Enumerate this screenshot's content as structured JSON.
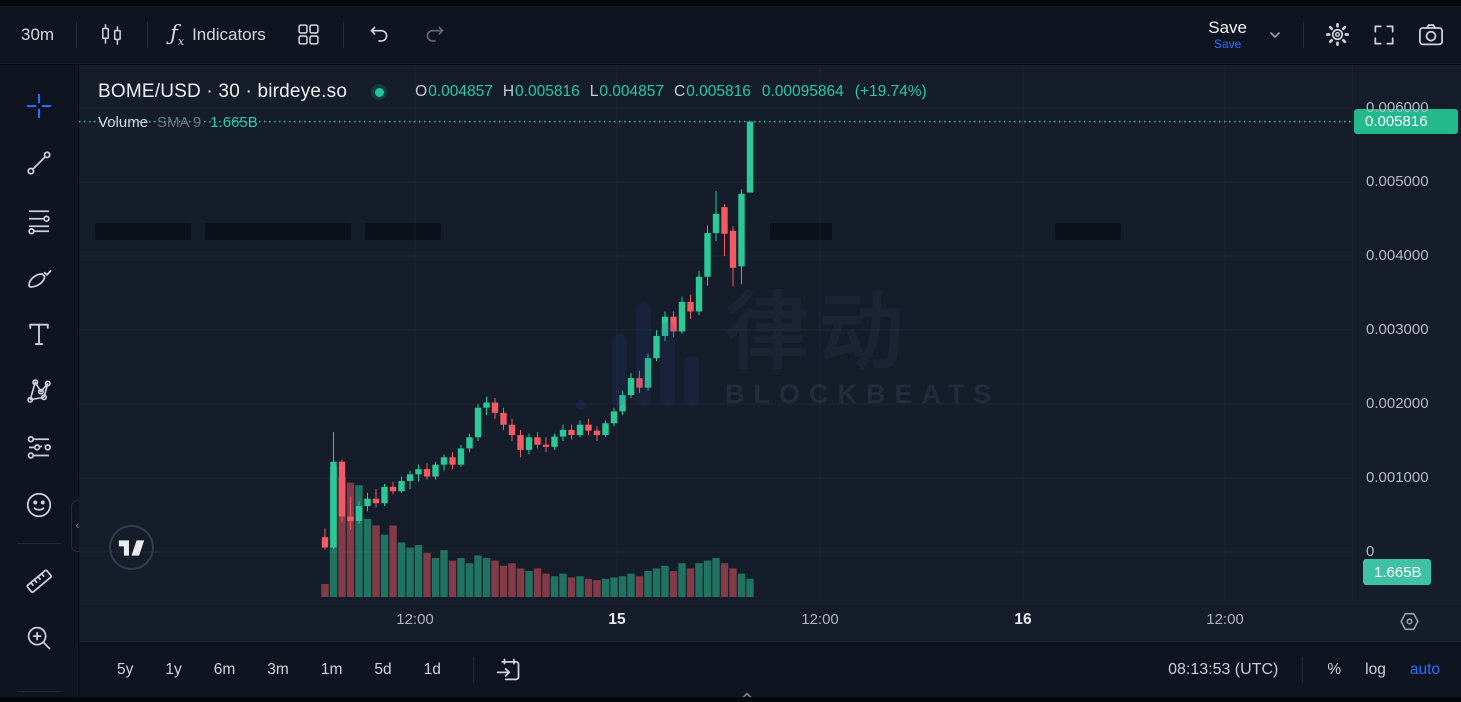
{
  "toolbar": {
    "interval": "30m",
    "indicators_label": "Indicators",
    "save_label": "Save",
    "save_tooltip": "Save"
  },
  "sidebar": {
    "tools": [
      "crosshair",
      "trend-line",
      "fib-retracement",
      "brush",
      "text",
      "xabcd-pattern",
      "forecast",
      "emoji",
      "measure",
      "zoom-in"
    ]
  },
  "symbol_header": {
    "title": "BOME/USD · 30 · birdeye.so",
    "ohlc": {
      "o_label": "O",
      "o": "0.004857",
      "h_label": "H",
      "h": "0.005816",
      "l_label": "L",
      "l": "0.004857",
      "c_label": "C",
      "c": "0.005816",
      "change_abs": "0.00095864",
      "change_pct": "(+19.74%)"
    }
  },
  "volume_row": {
    "label": "Volume",
    "sma_label": "SMA 9",
    "value": "1.665B"
  },
  "watermark": {
    "cjk": "律动",
    "brand": "BLOCKBEATS"
  },
  "price_axis": {
    "price_badge": "0.005816",
    "volume_badge": "1.665B"
  },
  "bottom_bar": {
    "ranges": [
      "5y",
      "1y",
      "6m",
      "3m",
      "1m",
      "5d",
      "1d"
    ],
    "clock": "08:13:53 (UTC)",
    "percent_label": "%",
    "log_label": "log",
    "auto_label": "auto"
  },
  "colors": {
    "up": "#2bc996",
    "down": "#f25a64",
    "accent_blue": "#2e6bff",
    "price_badge_bg": "#23b98b",
    "volume_badge_bg": "#3fc1a4",
    "teal_text": "#2dc9ab",
    "grid": "rgba(255,255,255,0.05)"
  },
  "chart_data": {
    "type": "candlestick",
    "symbol": "BOME/USD",
    "interval": "30",
    "source": "birdeye.so",
    "title": "BOME/USD · 30 · birdeye.so",
    "legend": [
      "Volume SMA 9 1.665B"
    ],
    "grid": true,
    "ylim": [
      0,
      0.0065
    ],
    "current_price": 0.005816,
    "price_line": 0.005816,
    "volume_sma": "1.665B",
    "y_ticks": [
      {
        "label": "0.006000",
        "value": 0.006
      },
      {
        "label": "0.005000",
        "value": 0.005
      },
      {
        "label": "0.004000",
        "value": 0.004
      },
      {
        "label": "0.003000",
        "value": 0.003
      },
      {
        "label": "0.002000",
        "value": 0.002
      },
      {
        "label": "0.001000",
        "value": 0.001
      },
      {
        "label": "0",
        "value": 0
      }
    ],
    "x_ticks": [
      {
        "label": "12:00",
        "x": 415,
        "major": false
      },
      {
        "label": "15",
        "x": 617,
        "major": true
      },
      {
        "label": "12:00",
        "x": 820,
        "major": false
      },
      {
        "label": "16",
        "x": 1023,
        "major": true
      },
      {
        "label": "12:00",
        "x": 1225,
        "major": false
      }
    ],
    "candles": [
      [
        0.0002,
        0.00032,
        3e-05,
        6e-05
      ],
      [
        6e-05,
        0.00162,
        4e-05,
        0.00122
      ],
      [
        0.00122,
        0.00125,
        0.0004,
        0.00048
      ],
      [
        0.00048,
        0.00075,
        0.0003,
        0.00042
      ],
      [
        0.00042,
        0.00068,
        0.00038,
        0.00062
      ],
      [
        0.00062,
        0.0008,
        0.00055,
        0.00072
      ],
      [
        0.00072,
        0.00085,
        0.0006,
        0.00066
      ],
      [
        0.00066,
        0.00092,
        0.00062,
        0.00088
      ],
      [
        0.00088,
        0.00095,
        0.00078,
        0.00082
      ],
      [
        0.00082,
        0.00102,
        0.0008,
        0.00096
      ],
      [
        0.00096,
        0.0011,
        0.00085,
        0.00105
      ],
      [
        0.00105,
        0.00118,
        0.00095,
        0.00112
      ],
      [
        0.00112,
        0.0012,
        0.00098,
        0.00102
      ],
      [
        0.00102,
        0.00122,
        0.00098,
        0.00118
      ],
      [
        0.00118,
        0.00132,
        0.0011,
        0.00128
      ],
      [
        0.00128,
        0.00135,
        0.00112,
        0.00118
      ],
      [
        0.00118,
        0.00145,
        0.00115,
        0.0014
      ],
      [
        0.0014,
        0.0016,
        0.00135,
        0.00155
      ],
      [
        0.00155,
        0.002,
        0.0015,
        0.00195
      ],
      [
        0.00195,
        0.0021,
        0.00185,
        0.00202
      ],
      [
        0.00202,
        0.00208,
        0.0018,
        0.00188
      ],
      [
        0.00188,
        0.00195,
        0.00165,
        0.00172
      ],
      [
        0.00172,
        0.0018,
        0.0015,
        0.00158
      ],
      [
        0.00158,
        0.00165,
        0.00128,
        0.00138
      ],
      [
        0.00138,
        0.0016,
        0.00132,
        0.00155
      ],
      [
        0.00155,
        0.00162,
        0.0014,
        0.00145
      ],
      [
        0.00145,
        0.00155,
        0.00135,
        0.00142
      ],
      [
        0.00142,
        0.0016,
        0.00138,
        0.00156
      ],
      [
        0.00156,
        0.00172,
        0.0015,
        0.00165
      ],
      [
        0.00165,
        0.00172,
        0.00152,
        0.00158
      ],
      [
        0.00158,
        0.00178,
        0.00155,
        0.00172
      ],
      [
        0.00172,
        0.0018,
        0.00158,
        0.00164
      ],
      [
        0.00164,
        0.0017,
        0.0015,
        0.00158
      ],
      [
        0.00158,
        0.00178,
        0.00155,
        0.00174
      ],
      [
        0.00174,
        0.00195,
        0.0017,
        0.0019
      ],
      [
        0.0019,
        0.00218,
        0.00185,
        0.00212
      ],
      [
        0.00212,
        0.00242,
        0.00208,
        0.00235
      ],
      [
        0.00235,
        0.00245,
        0.00215,
        0.00222
      ],
      [
        0.00222,
        0.00268,
        0.00218,
        0.00262
      ],
      [
        0.00262,
        0.003,
        0.00258,
        0.00292
      ],
      [
        0.00292,
        0.00325,
        0.00285,
        0.00318
      ],
      [
        0.00318,
        0.00325,
        0.0029,
        0.00298
      ],
      [
        0.00298,
        0.00345,
        0.00295,
        0.00338
      ],
      [
        0.00338,
        0.00348,
        0.00315,
        0.00325
      ],
      [
        0.00325,
        0.0038,
        0.0032,
        0.00372
      ],
      [
        0.00372,
        0.00441,
        0.0036,
        0.00431
      ],
      [
        0.00431,
        0.00488,
        0.0042,
        0.00457
      ],
      [
        0.00466,
        0.0047,
        0.004,
        0.0043
      ],
      [
        0.00434,
        0.0044,
        0.00359,
        0.00384
      ],
      [
        0.00386,
        0.0049,
        0.00362,
        0.00484
      ],
      [
        0.004857,
        0.005816,
        0.004857,
        0.005816
      ]
    ],
    "volume_rel": [
      0.1,
      1.0,
      0.92,
      0.88,
      0.86,
      0.6,
      0.55,
      0.48,
      0.55,
      0.42,
      0.38,
      0.4,
      0.34,
      0.3,
      0.36,
      0.28,
      0.3,
      0.26,
      0.32,
      0.3,
      0.28,
      0.24,
      0.26,
      0.22,
      0.2,
      0.22,
      0.18,
      0.16,
      0.18,
      0.15,
      0.16,
      0.14,
      0.13,
      0.14,
      0.15,
      0.16,
      0.18,
      0.16,
      0.2,
      0.22,
      0.24,
      0.2,
      0.26,
      0.22,
      0.26,
      0.28,
      0.3,
      0.26,
      0.22,
      0.18,
      0.14
    ]
  }
}
